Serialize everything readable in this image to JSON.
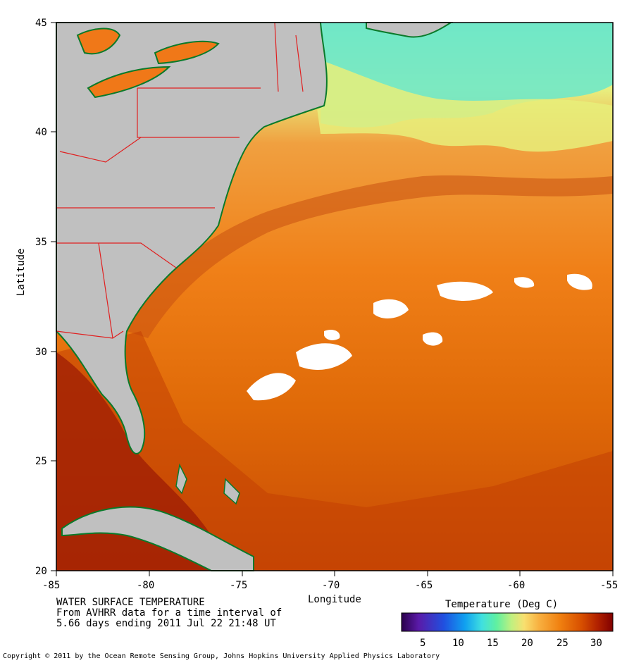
{
  "title_lines": [
    "WATER SURFACE TEMPERATURE",
    "From AVHRR data for a time interval of",
    "5.66 days ending 2011 Jul 22 21:48 UT"
  ],
  "x_axis": {
    "label": "Longitude",
    "ticks": [
      "-85",
      "-80",
      "-75",
      "-70",
      "-65",
      "-60",
      "-55"
    ]
  },
  "y_axis": {
    "label": "Latitude",
    "ticks": [
      "45",
      "40",
      "35",
      "30",
      "25",
      "20"
    ]
  },
  "colorbar": {
    "title": "Temperature (Deg C)",
    "ticks": [
      "5",
      "10",
      "15",
      "20",
      "25",
      "30"
    ],
    "colors": [
      "#2a004a",
      "#5a1aa8",
      "#2050e0",
      "#10a0f0",
      "#40e0e0",
      "#60f0a0",
      "#c0f080",
      "#f8e070",
      "#f8b040",
      "#f08010",
      "#d85000",
      "#b02000",
      "#800000"
    ]
  },
  "copyright": "Copyright © 2011 by the Ocean Remote Sensing Group, Johns Hopkins University Applied Physics Laboratory",
  "colors": {
    "land": "#c0c0c0",
    "coast": "#0a7a2a",
    "border": "#e02020",
    "cloud": "#ffffff"
  }
}
